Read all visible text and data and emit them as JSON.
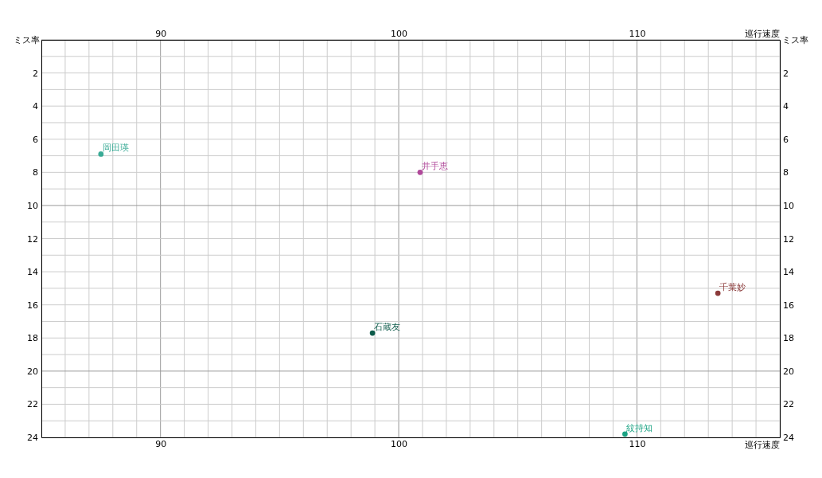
{
  "chart_data": {
    "type": "scatter",
    "xlabel": "巡行速度",
    "x2label": "巡行速度",
    "ylabel": "ミス率",
    "y2label": "ミス率",
    "xlim": [
      85,
      116
    ],
    "x2lim": [
      85,
      116
    ],
    "ylim": [
      24,
      0
    ],
    "y2lim": [
      24,
      0
    ],
    "xticks": [
      {
        "value": 85,
        "label": null
      },
      {
        "value": 86,
        "label": null
      },
      {
        "value": 87,
        "label": null
      },
      {
        "value": 88,
        "label": null
      },
      {
        "value": 89,
        "label": null
      },
      90,
      {
        "value": 91,
        "label": null
      },
      {
        "value": 92,
        "label": null
      },
      {
        "value": 93,
        "label": null
      },
      {
        "value": 94,
        "label": null
      },
      {
        "value": 95,
        "label": null
      },
      {
        "value": 96,
        "label": null
      },
      {
        "value": 97,
        "label": null
      },
      {
        "value": 98,
        "label": null
      },
      {
        "value": 99,
        "label": null
      },
      100,
      {
        "value": 101,
        "label": null
      },
      {
        "value": 102,
        "label": null
      },
      {
        "value": 103,
        "label": null
      },
      {
        "value": 104,
        "label": null
      },
      {
        "value": 105,
        "label": null
      },
      {
        "value": 106,
        "label": null
      },
      {
        "value": 107,
        "label": null
      },
      {
        "value": 108,
        "label": null
      },
      {
        "value": 109,
        "label": null
      },
      110,
      {
        "value": 111,
        "label": null
      },
      {
        "value": 112,
        "label": null
      },
      {
        "value": 113,
        "label": null
      },
      {
        "value": 114,
        "label": null
      },
      {
        "value": 115,
        "label": null
      },
      {
        "value": 116,
        "label": null
      }
    ],
    "x2ticks": [
      90,
      100,
      110
    ],
    "yticks": [
      {
        "value": 0,
        "label": null
      },
      {
        "value": 1,
        "label": null
      },
      2,
      {
        "value": 3,
        "label": null
      },
      4,
      {
        "value": 5,
        "label": null
      },
      6,
      {
        "value": 7,
        "label": null
      },
      8,
      {
        "value": 9,
        "label": null
      },
      10,
      {
        "value": 11,
        "label": null
      },
      12,
      {
        "value": 13,
        "label": null
      },
      14,
      {
        "value": 15,
        "label": null
      },
      16,
      {
        "value": 17,
        "label": null
      },
      18,
      {
        "value": 19,
        "label": null
      },
      20,
      {
        "value": 21,
        "label": null
      },
      22,
      {
        "value": 23,
        "label": null
      },
      24
    ],
    "y2ticks": [
      2,
      4,
      6,
      8,
      10,
      12,
      14,
      16,
      18,
      20,
      22,
      24
    ],
    "grid": true,
    "marker": "circle",
    "legend": false,
    "series": [
      {
        "name": "岡田瑛",
        "color": "#3aab96",
        "x": [
          87.5
        ],
        "values": [
          6.9
        ]
      },
      {
        "name": "井手恵",
        "color": "#b0489a",
        "x": [
          100.9
        ],
        "values": [
          8.0
        ]
      },
      {
        "name": "千葉妙",
        "color": "#8b3a3a",
        "x": [
          113.4
        ],
        "values": [
          15.3
        ]
      },
      {
        "name": "石蔵友",
        "color": "#0d5b4a",
        "x": [
          98.9
        ],
        "values": [
          17.7
        ]
      },
      {
        "name": "紋持知",
        "color": "#1aa383",
        "x": [
          109.5
        ],
        "values": [
          23.8
        ]
      }
    ]
  }
}
